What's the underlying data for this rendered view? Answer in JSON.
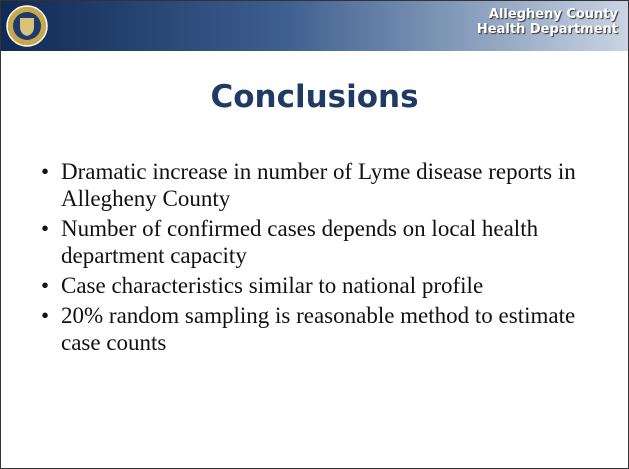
{
  "header": {
    "org_line1": "Allegheny County",
    "org_line2": "Health Department"
  },
  "slide": {
    "title": "Conclusions",
    "bullets": [
      "Dramatic increase in number of Lyme disease reports in Allegheny County",
      "Number of confirmed cases depends on local health department capacity",
      "Case characteristics similar to national profile",
      "20% random sampling is reasonable method to estimate case counts"
    ]
  }
}
